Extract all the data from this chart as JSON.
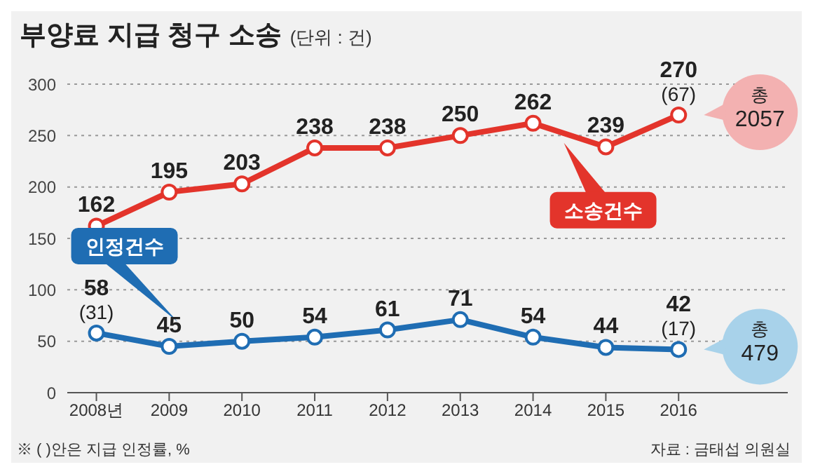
{
  "chart_data": {
    "type": "line",
    "title": "부양료 지급 청구 소송",
    "subtitle": "(단위 : 건)",
    "categories": [
      "2008년",
      "2009",
      "2010",
      "2011",
      "2012",
      "2013",
      "2014",
      "2015",
      "2016"
    ],
    "series": [
      {
        "name": "소송건수",
        "color": "#e3342b",
        "values": [
          162,
          195,
          203,
          238,
          238,
          250,
          262,
          239,
          270
        ]
      },
      {
        "name": "인정건수",
        "color": "#1f6db3",
        "values": [
          58,
          45,
          50,
          54,
          61,
          71,
          54,
          44,
          42
        ]
      }
    ],
    "ylim": [
      0,
      300
    ],
    "yticks": [
      0,
      50,
      100,
      150,
      200,
      250,
      300
    ],
    "grid": "y",
    "marker": "circle",
    "line_style": "solid",
    "data_labels": true,
    "annotations": [
      {
        "text": "(31)",
        "x": "2008년",
        "y": 58
      },
      {
        "text": "(67)",
        "x": "2016",
        "y": 270
      },
      {
        "text": "(17)",
        "x": "2016",
        "y": 42
      },
      "총 2057",
      "총 479",
      "※ ( )안은 지급 인정률, %",
      "자료 : 금태섭 의원실"
    ]
  }
}
